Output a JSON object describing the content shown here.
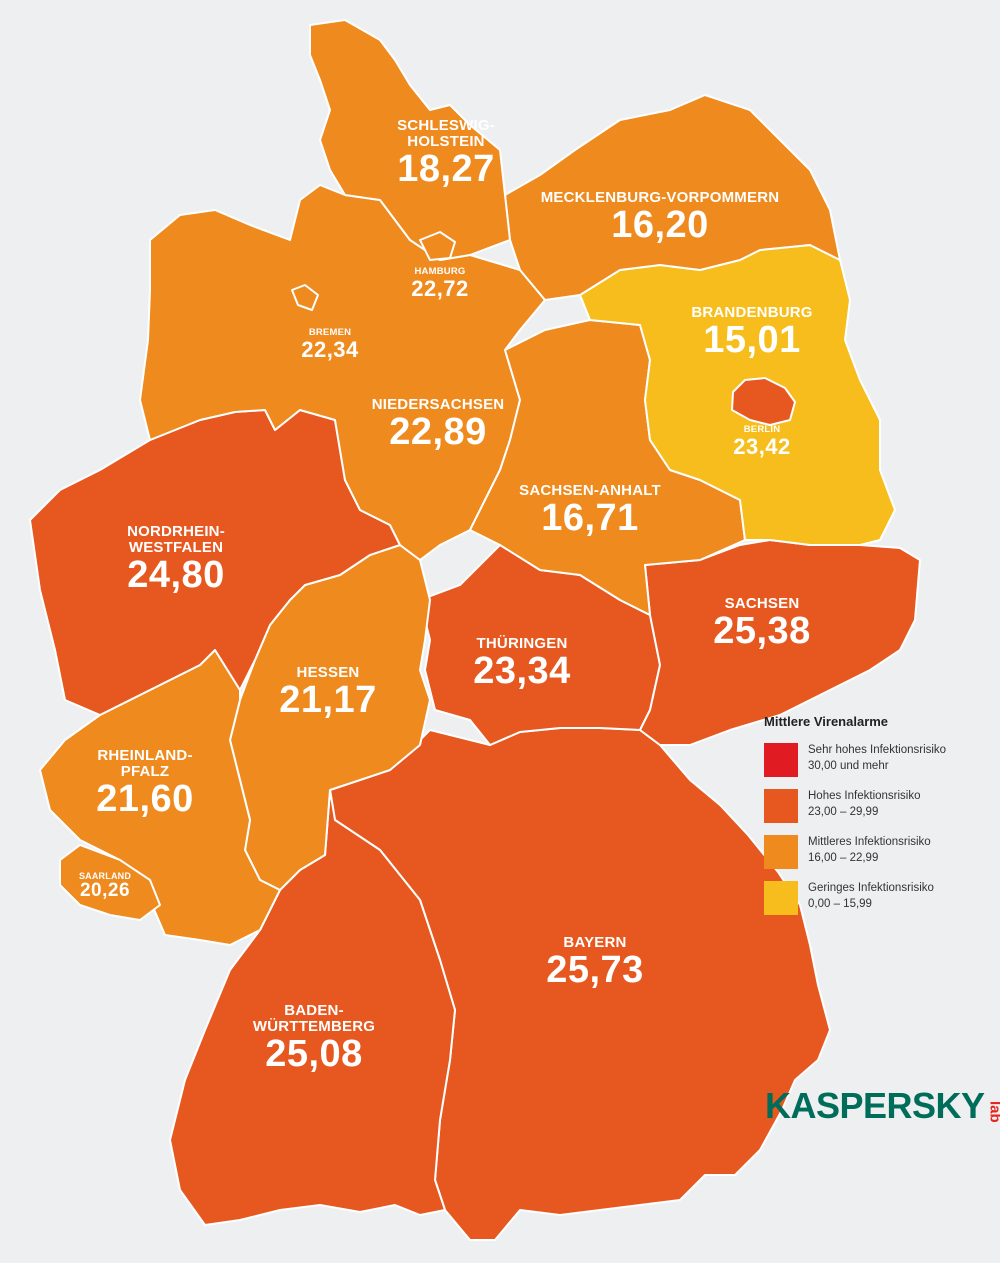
{
  "colors": {
    "very_high": "#e11b22",
    "high": "#e6581f",
    "medium": "#ee8a1e",
    "low": "#f6bd1c",
    "background": "#eeeff1"
  },
  "states": [
    {
      "id": "schleswig-holstein",
      "name_lines": [
        "SCHLESWIG-",
        "HOLSTEIN"
      ],
      "value": "18,27",
      "level": "medium"
    },
    {
      "id": "mecklenburg-vorpommern",
      "name_lines": [
        "MECKLENBURG-VORPOMMERN"
      ],
      "value": "16,20",
      "level": "medium"
    },
    {
      "id": "hamburg",
      "name_lines": [
        "HAMBURG"
      ],
      "value": "22,72",
      "level": "medium"
    },
    {
      "id": "bremen",
      "name_lines": [
        "BREMEN"
      ],
      "value": "22,34",
      "level": "medium"
    },
    {
      "id": "brandenburg",
      "name_lines": [
        "BRANDENBURG"
      ],
      "value": "15,01",
      "level": "low"
    },
    {
      "id": "berlin",
      "name_lines": [
        "BERLIN"
      ],
      "value": "23,42",
      "level": "high"
    },
    {
      "id": "niedersachsen",
      "name_lines": [
        "NIEDERSACHSEN"
      ],
      "value": "22,89",
      "level": "medium"
    },
    {
      "id": "sachsen-anhalt",
      "name_lines": [
        "SACHSEN-ANHALT"
      ],
      "value": "16,71",
      "level": "medium"
    },
    {
      "id": "nordrhein-westfalen",
      "name_lines": [
        "NORDRHEIN-",
        "WESTFALEN"
      ],
      "value": "24,80",
      "level": "high"
    },
    {
      "id": "sachsen",
      "name_lines": [
        "SACHSEN"
      ],
      "value": "25,38",
      "level": "high"
    },
    {
      "id": "thueringen",
      "name_lines": [
        "THÜRINGEN"
      ],
      "value": "23,34",
      "level": "high"
    },
    {
      "id": "hessen",
      "name_lines": [
        "HESSEN"
      ],
      "value": "21,17",
      "level": "medium"
    },
    {
      "id": "rheinland-pfalz",
      "name_lines": [
        "RHEINLAND-",
        "PFALZ"
      ],
      "value": "21,60",
      "level": "medium"
    },
    {
      "id": "saarland",
      "name_lines": [
        "SAARLAND"
      ],
      "value": "20,26",
      "level": "medium"
    },
    {
      "id": "bayern",
      "name_lines": [
        "BAYERN"
      ],
      "value": "25,73",
      "level": "high"
    },
    {
      "id": "baden-wuerttemberg",
      "name_lines": [
        "BADEN-",
        "WÜRTTEMBERG"
      ],
      "value": "25,08",
      "level": "high"
    }
  ],
  "legend": {
    "title": "Mittlere Virenalarme",
    "items": [
      {
        "level": "very_high",
        "line1": "Sehr hohes Infektionsrisiko",
        "line2": "30,00 und mehr"
      },
      {
        "level": "high",
        "line1": "Hohes Infektionsrisiko",
        "line2": "23,00 – 29,99"
      },
      {
        "level": "medium",
        "line1": "Mittleres Infektionsrisiko",
        "line2": "16,00 – 22,99"
      },
      {
        "level": "low",
        "line1": "Geringes Infektionsrisiko",
        "line2": "0,00 –  15,99"
      }
    ]
  },
  "logo": {
    "word": "KASPERSKY",
    "suffix": "lab"
  }
}
